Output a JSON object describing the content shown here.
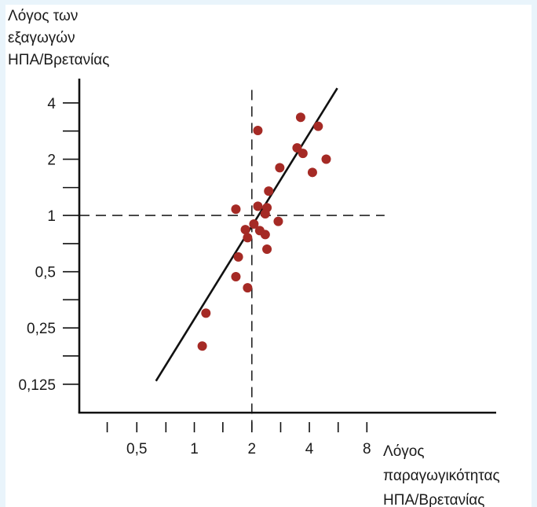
{
  "chart_data": {
    "type": "scatter",
    "title": "",
    "ylabel_lines": [
      "Λόγος των",
      "εξαγωγών",
      "ΗΠΑ/Βρετανίας"
    ],
    "xlabel_lines": [
      "Λόγος",
      "παραγωγικότητας",
      "ΗΠΑ/Βρετανίας"
    ],
    "x_scale": "log2",
    "y_scale": "log2",
    "xlim": [
      0.25,
      38
    ],
    "ylim": [
      0.088,
      5.4
    ],
    "x_ticks": [
      0.35,
      0.5,
      0.71,
      1,
      1.41,
      2,
      2.83,
      4,
      5.66,
      8
    ],
    "x_tick_labels": [
      {
        "value": 0.5,
        "label": "0,5"
      },
      {
        "value": 1,
        "label": "1"
      },
      {
        "value": 2,
        "label": "2"
      },
      {
        "value": 4,
        "label": "4"
      },
      {
        "value": 8,
        "label": "8"
      }
    ],
    "y_ticks": [
      0.125,
      0.177,
      0.25,
      0.354,
      0.5,
      0.707,
      1,
      1.41,
      2,
      2.83,
      4
    ],
    "y_tick_labels": [
      {
        "value": 0.125,
        "label": "0,125"
      },
      {
        "value": 0.25,
        "label": "0,25"
      },
      {
        "value": 0.5,
        "label": "0,5"
      },
      {
        "value": 1,
        "label": "1"
      },
      {
        "value": 2,
        "label": "2"
      },
      {
        "value": 4,
        "label": "4"
      }
    ],
    "reference_lines": {
      "x": 2,
      "y": 1,
      "style": "dashed"
    },
    "fit_line": {
      "points": [
        [
          0.63,
          0.13
        ],
        [
          5.6,
          4.8
        ]
      ]
    },
    "marker_color": "#a52a25",
    "series": [
      {
        "points": [
          {
            "x": 2.15,
            "y": 2.85
          },
          {
            "x": 3.6,
            "y": 3.35
          },
          {
            "x": 4.45,
            "y": 3.0
          },
          {
            "x": 3.45,
            "y": 2.3
          },
          {
            "x": 3.7,
            "y": 2.15
          },
          {
            "x": 4.9,
            "y": 2.0
          },
          {
            "x": 2.8,
            "y": 1.8
          },
          {
            "x": 4.15,
            "y": 1.7
          },
          {
            "x": 2.45,
            "y": 1.35
          },
          {
            "x": 1.65,
            "y": 1.08
          },
          {
            "x": 2.15,
            "y": 1.12
          },
          {
            "x": 2.4,
            "y": 1.1
          },
          {
            "x": 2.35,
            "y": 1.02
          },
          {
            "x": 2.05,
            "y": 0.9
          },
          {
            "x": 2.75,
            "y": 0.93
          },
          {
            "x": 1.85,
            "y": 0.84
          },
          {
            "x": 2.2,
            "y": 0.83
          },
          {
            "x": 2.35,
            "y": 0.79
          },
          {
            "x": 1.9,
            "y": 0.76
          },
          {
            "x": 2.4,
            "y": 0.66
          },
          {
            "x": 1.7,
            "y": 0.6
          },
          {
            "x": 1.65,
            "y": 0.47
          },
          {
            "x": 1.9,
            "y": 0.41
          },
          {
            "x": 1.15,
            "y": 0.3
          },
          {
            "x": 1.1,
            "y": 0.2
          }
        ]
      }
    ]
  }
}
